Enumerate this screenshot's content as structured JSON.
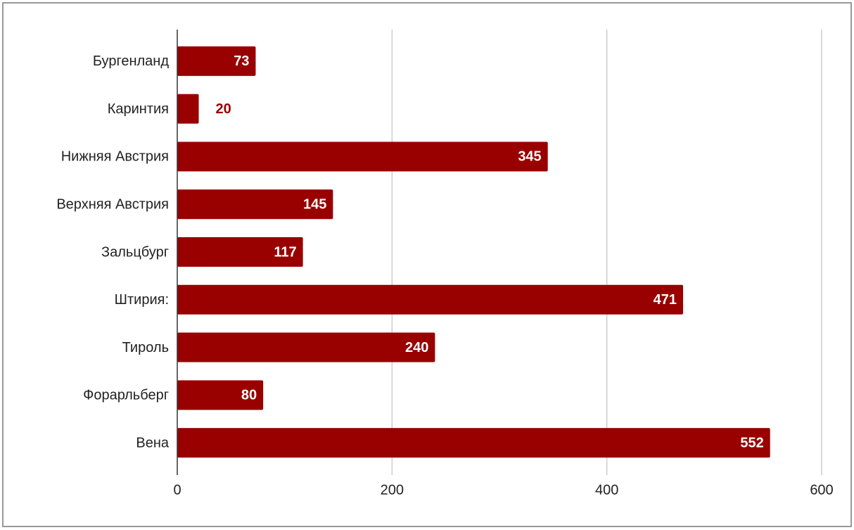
{
  "chart_data": {
    "type": "bar",
    "orientation": "horizontal",
    "categories": [
      "Бургенланд",
      "Каринтия",
      "Нижняя Австрия",
      "Верхняя Австрия",
      "Зальцбург",
      "Штирия:",
      "Тироль",
      "Форарльберг",
      "Вена"
    ],
    "values": [
      73,
      20,
      345,
      145,
      117,
      471,
      240,
      80,
      552
    ],
    "color": "#990000",
    "xlim": [
      0,
      600
    ],
    "xticks": [
      0,
      200,
      400,
      600
    ],
    "grid": true
  }
}
